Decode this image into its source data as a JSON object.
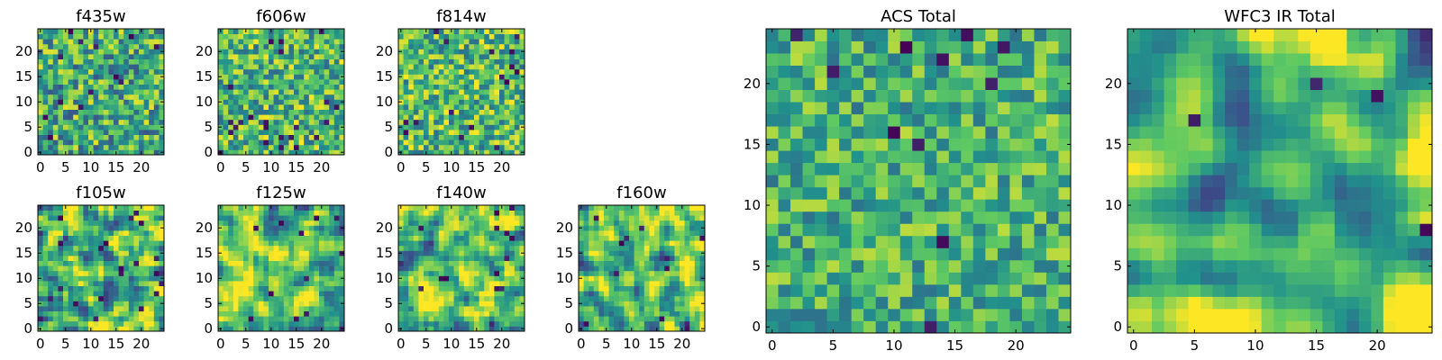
{
  "figure": {
    "colormap": "viridis",
    "viridis_colors": [
      "#440154",
      "#3b528b",
      "#21918c",
      "#5ec962",
      "#fde725"
    ]
  },
  "chart_data": [
    {
      "type": "heatmap",
      "title": "f435w",
      "grid": [
        25,
        25
      ],
      "xlim": [
        0,
        25
      ],
      "ylim": [
        0,
        25
      ],
      "xticks": [
        0,
        5,
        10,
        15,
        20
      ],
      "yticks": [
        0,
        5,
        10,
        15,
        20
      ],
      "seed": 11,
      "smooth": 0,
      "mean": 0.62,
      "contrast": 0.2,
      "dark_spots": 0.03
    },
    {
      "type": "heatmap",
      "title": "f606w",
      "grid": [
        25,
        25
      ],
      "xlim": [
        0,
        25
      ],
      "ylim": [
        0,
        25
      ],
      "xticks": [
        0,
        5,
        10,
        15,
        20
      ],
      "yticks": [
        0,
        5,
        10,
        15,
        20
      ],
      "seed": 23,
      "smooth": 0,
      "mean": 0.66,
      "contrast": 0.19,
      "dark_spots": 0.03
    },
    {
      "type": "heatmap",
      "title": "f814w",
      "grid": [
        25,
        25
      ],
      "xlim": [
        0,
        25
      ],
      "ylim": [
        0,
        25
      ],
      "xticks": [
        0,
        5,
        10,
        15,
        20
      ],
      "yticks": [
        0,
        5,
        10,
        15,
        20
      ],
      "seed": 37,
      "smooth": 0,
      "mean": 0.68,
      "contrast": 0.19,
      "dark_spots": 0.03
    },
    {
      "type": "heatmap",
      "title": "f105w",
      "grid": [
        25,
        25
      ],
      "xlim": [
        0,
        25
      ],
      "ylim": [
        0,
        25
      ],
      "xticks": [
        0,
        5,
        10,
        15,
        20
      ],
      "yticks": [
        0,
        5,
        10,
        15,
        20
      ],
      "seed": 41,
      "smooth": 1,
      "mean": 0.66,
      "contrast": 0.22,
      "dark_spots": 0.025
    },
    {
      "type": "heatmap",
      "title": "f125w",
      "grid": [
        25,
        25
      ],
      "xlim": [
        0,
        25
      ],
      "ylim": [
        0,
        25
      ],
      "xticks": [
        0,
        5,
        10,
        15,
        20
      ],
      "yticks": [
        0,
        5,
        10,
        15,
        20
      ],
      "seed": 53,
      "smooth": 1,
      "mean": 0.7,
      "contrast": 0.2,
      "dark_spots": 0.02
    },
    {
      "type": "heatmap",
      "title": "f140w",
      "grid": [
        25,
        25
      ],
      "xlim": [
        0,
        25
      ],
      "ylim": [
        0,
        25
      ],
      "xticks": [
        0,
        5,
        10,
        15,
        20
      ],
      "yticks": [
        0,
        5,
        10,
        15,
        20
      ],
      "seed": 67,
      "smooth": 1,
      "mean": 0.7,
      "contrast": 0.2,
      "dark_spots": 0.02
    },
    {
      "type": "heatmap",
      "title": "f160w",
      "grid": [
        25,
        25
      ],
      "xlim": [
        0,
        25
      ],
      "ylim": [
        0,
        25
      ],
      "xticks": [
        0,
        5,
        10,
        15,
        20
      ],
      "yticks": [
        0,
        5,
        10,
        15,
        20
      ],
      "seed": 79,
      "smooth": 1,
      "mean": 0.7,
      "contrast": 0.2,
      "dark_spots": 0.025
    },
    {
      "type": "heatmap",
      "title": "ACS Total",
      "grid": [
        25,
        25
      ],
      "xlim": [
        0,
        25
      ],
      "ylim": [
        0,
        25
      ],
      "xticks": [
        0,
        5,
        10,
        15,
        20
      ],
      "yticks": [
        0,
        5,
        10,
        15,
        20
      ],
      "seed": 97,
      "smooth": 0,
      "mean": 0.64,
      "contrast": 0.16,
      "dark_spots": 0.02
    },
    {
      "type": "heatmap",
      "title": "WFC3 IR Total",
      "grid": [
        25,
        25
      ],
      "xlim": [
        0,
        25
      ],
      "ylim": [
        0,
        25
      ],
      "xticks": [
        0,
        5,
        10,
        15,
        20
      ],
      "yticks": [
        0,
        5,
        10,
        15,
        20
      ],
      "seed": 103,
      "smooth": 2,
      "mean": 0.66,
      "contrast": 0.2,
      "dark_spots": 0.015
    }
  ]
}
